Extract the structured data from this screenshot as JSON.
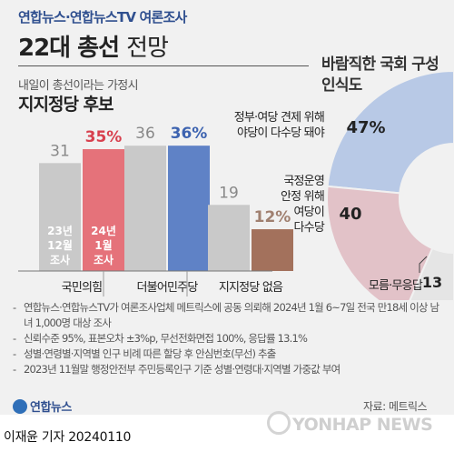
{
  "header": {
    "source": "연합뉴스·연합뉴스TV 여론조사",
    "title_bold": "22대 총선",
    "title_light": "전망"
  },
  "left_panel": {
    "subtitle": "내일이 총선이라는 가정시",
    "title": "지지정당 후보"
  },
  "right_panel": {
    "title": "바람직한 국회 구성 인식도"
  },
  "colors": {
    "gray_bar": "#c9c9c9",
    "ppp_2024": "#e5727a",
    "dp_2024": "#5f82c6",
    "none_2024": "#a3715c",
    "donut_check": "#b8c9e6",
    "donut_stable": "#e2c2c8",
    "donut_none": "#e5e5e5",
    "title_blue": "#2f4f8f"
  },
  "chart_data": [
    {
      "type": "bar",
      "categories": [
        "국민의힘",
        "더불어민주당",
        "지지정당 없음"
      ],
      "series": [
        {
          "name": "23년 12월 조사",
          "values": [
            31,
            36,
            19
          ],
          "labels": [
            "31",
            "36",
            "19"
          ]
        },
        {
          "name": "24년 1월 조사",
          "values": [
            35,
            36,
            12
          ],
          "labels": [
            "35%",
            "36%",
            "12%"
          ]
        }
      ],
      "series_legend_lines": [
        [
          "23년",
          "12월",
          "조사"
        ],
        [
          "24년",
          "1월",
          "조사"
        ]
      ],
      "ylim": [
        0,
        40
      ]
    },
    {
      "type": "pie",
      "title": "바람직한 국회 구성 인식도",
      "slices": [
        {
          "label": "정부·여당 견제 위해 야당이 다수당 돼야",
          "label_lines": [
            "정부·여당 견제 위해",
            "야당이 다수당 돼야"
          ],
          "value": 47,
          "display": "47%"
        },
        {
          "label": "국정운영 안정 위해 여당이 다수당",
          "label_lines": [
            "국정운영",
            "안정 위해",
            "여당이",
            "다수당"
          ],
          "value": 40,
          "display": "40"
        },
        {
          "label": "모름·무응답",
          "label_lines": [
            "모름·무응답"
          ],
          "value": 13,
          "display": "13"
        }
      ]
    }
  ],
  "notes": [
    "연합뉴스·연합뉴스TV가 여론조사업체 메트릭스에 공동 의뢰해 2024년 1월 6~7일 전국 만18세 이상 남녀 1,000명 대상 조사",
    "신뢰수준 95%, 표본오차 ±3%p, 무선전화면접 100%, 응답률 13.1%",
    "성별·연령별·지역별 인구 비례 따른 할당 후 안심번호(무선) 추출",
    "2023년 11월말 행정안전부 주민등록인구 기준 성별·연령대·지역별 가중값 부여"
  ],
  "footer": {
    "logo": "연합뉴스",
    "source": "자료: 메트릭스",
    "watermark": "YONHAP NEWS",
    "byline": "이재윤 기자  20240110"
  }
}
